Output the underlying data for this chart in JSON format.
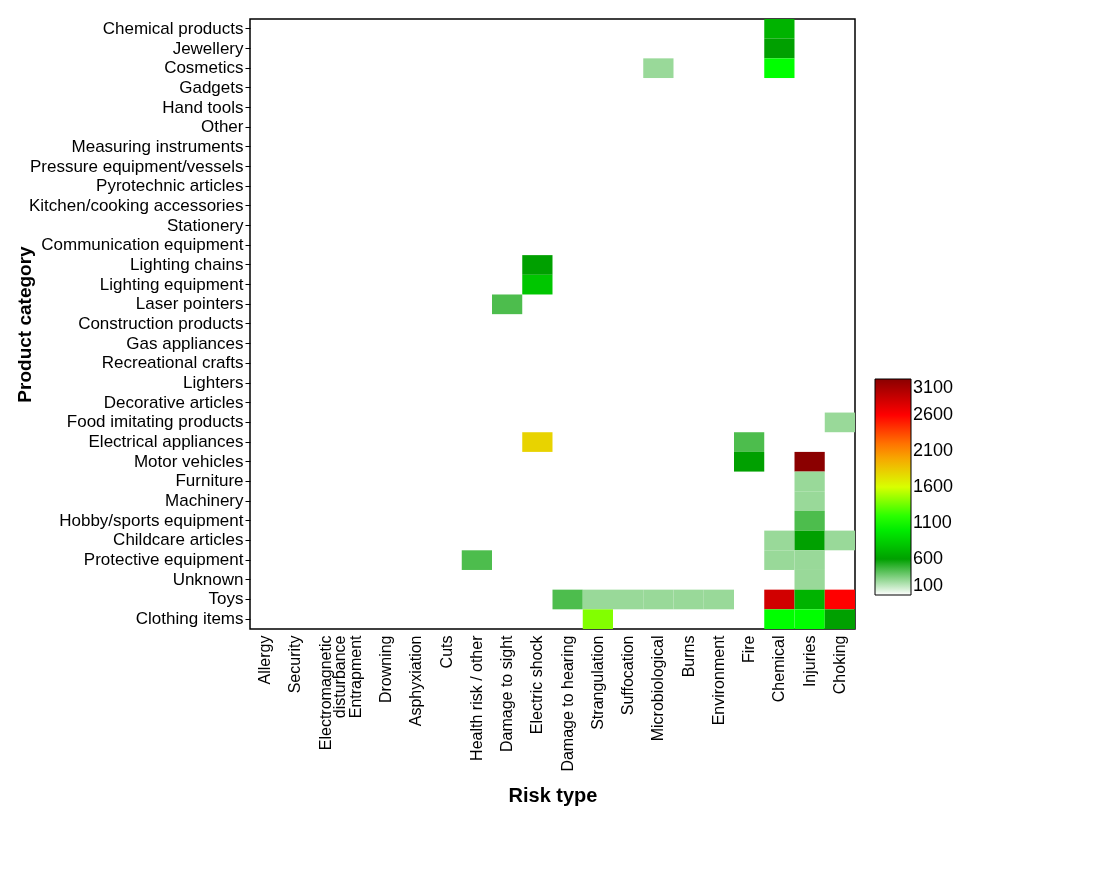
{
  "chart_data": {
    "type": "heatmap",
    "xlabel": "Risk type",
    "ylabel": "Product category",
    "categories": [
      "Allergy",
      "Security",
      "Electromagnetic disturbance",
      "Entrapment",
      "Drowning",
      "Asphyxiation",
      "Cuts",
      "Health risk / other",
      "Damage to sight",
      "Electric shock",
      "Damage to hearing",
      "Strangulation",
      "Suffocation",
      "Microbiological",
      "Burns",
      "Environment",
      "Fire",
      "Chemical",
      "Injuries",
      "Choking"
    ],
    "y_categories": [
      "Chemical products",
      "Jewellery",
      "Cosmetics",
      "Gadgets",
      "Hand tools",
      "Other",
      "Measuring instruments",
      "Pressure equipment/vessels",
      "Pyrotechnic articles",
      "Kitchen/cooking accessories",
      "Stationery",
      "Communication equipment",
      "Lighting chains",
      "Lighting equipment",
      "Laser pointers",
      "Construction products",
      "Gas appliances",
      "Recreational crafts",
      "Lighters",
      "Decorative articles",
      "Food imitating products",
      "Electrical appliances",
      "Motor vehicles",
      "Furniture",
      "Machinery",
      "Hobby/sports equipment",
      "Childcare articles",
      "Protective equipment",
      "Unknown",
      "Toys",
      "Clothing items"
    ],
    "cells": [
      [
        null,
        null,
        null,
        null,
        null,
        null,
        null,
        null,
        null,
        null,
        null,
        null,
        null,
        null,
        null,
        null,
        null,
        700,
        null,
        null
      ],
      [
        null,
        null,
        null,
        null,
        null,
        null,
        null,
        null,
        null,
        null,
        null,
        null,
        null,
        null,
        null,
        null,
        null,
        600,
        null,
        null
      ],
      [
        null,
        null,
        null,
        null,
        null,
        null,
        null,
        null,
        null,
        null,
        null,
        null,
        null,
        300,
        null,
        null,
        null,
        1100,
        null,
        null
      ],
      [
        null,
        null,
        null,
        null,
        null,
        null,
        null,
        null,
        null,
        null,
        null,
        null,
        null,
        null,
        null,
        null,
        null,
        null,
        null,
        null
      ],
      [
        null,
        null,
        null,
        null,
        null,
        null,
        null,
        null,
        null,
        null,
        null,
        null,
        null,
        null,
        null,
        null,
        null,
        null,
        null,
        null
      ],
      [
        null,
        null,
        null,
        null,
        null,
        null,
        null,
        null,
        null,
        null,
        null,
        null,
        null,
        null,
        null,
        null,
        null,
        null,
        null,
        null
      ],
      [
        null,
        null,
        null,
        null,
        null,
        null,
        null,
        null,
        null,
        null,
        null,
        null,
        null,
        null,
        null,
        null,
        null,
        null,
        null,
        null
      ],
      [
        null,
        null,
        null,
        null,
        null,
        null,
        null,
        null,
        null,
        null,
        null,
        null,
        null,
        null,
        null,
        null,
        null,
        null,
        null,
        null
      ],
      [
        null,
        null,
        null,
        null,
        null,
        null,
        null,
        null,
        null,
        null,
        null,
        null,
        null,
        null,
        null,
        null,
        null,
        null,
        null,
        null
      ],
      [
        null,
        null,
        null,
        null,
        null,
        null,
        null,
        null,
        null,
        null,
        null,
        null,
        null,
        null,
        null,
        null,
        null,
        null,
        null,
        null
      ],
      [
        null,
        null,
        null,
        null,
        null,
        null,
        null,
        null,
        null,
        null,
        null,
        null,
        null,
        null,
        null,
        null,
        null,
        null,
        null,
        null
      ],
      [
        null,
        null,
        null,
        null,
        null,
        null,
        null,
        null,
        null,
        null,
        null,
        null,
        null,
        null,
        null,
        null,
        null,
        null,
        null,
        null
      ],
      [
        null,
        null,
        null,
        null,
        null,
        null,
        null,
        null,
        null,
        600,
        null,
        null,
        null,
        null,
        null,
        null,
        null,
        null,
        null,
        null
      ],
      [
        null,
        null,
        null,
        null,
        null,
        null,
        null,
        null,
        null,
        800,
        null,
        null,
        null,
        null,
        null,
        null,
        null,
        null,
        null,
        null
      ],
      [
        null,
        null,
        null,
        null,
        null,
        null,
        null,
        null,
        450,
        null,
        null,
        null,
        null,
        null,
        null,
        null,
        null,
        null,
        null,
        null
      ],
      [
        null,
        null,
        null,
        null,
        null,
        null,
        null,
        null,
        null,
        null,
        null,
        null,
        null,
        null,
        null,
        null,
        null,
        null,
        null,
        null
      ],
      [
        null,
        null,
        null,
        null,
        null,
        null,
        null,
        null,
        null,
        null,
        null,
        null,
        null,
        null,
        null,
        null,
        null,
        null,
        null,
        null
      ],
      [
        null,
        null,
        null,
        null,
        null,
        null,
        null,
        null,
        null,
        null,
        null,
        null,
        null,
        null,
        null,
        null,
        null,
        null,
        null,
        null
      ],
      [
        null,
        null,
        null,
        null,
        null,
        null,
        null,
        null,
        null,
        null,
        null,
        null,
        null,
        null,
        null,
        null,
        null,
        null,
        null,
        null
      ],
      [
        null,
        null,
        null,
        null,
        null,
        null,
        null,
        null,
        null,
        null,
        null,
        null,
        null,
        null,
        null,
        null,
        null,
        null,
        null,
        null
      ],
      [
        null,
        null,
        null,
        null,
        null,
        null,
        null,
        null,
        null,
        null,
        null,
        null,
        null,
        null,
        null,
        null,
        null,
        null,
        null,
        300
      ],
      [
        null,
        null,
        null,
        null,
        null,
        null,
        null,
        null,
        null,
        1800,
        null,
        null,
        null,
        null,
        null,
        null,
        450,
        null,
        null,
        null
      ],
      [
        null,
        null,
        null,
        null,
        null,
        null,
        null,
        null,
        null,
        null,
        null,
        null,
        null,
        null,
        null,
        null,
        600,
        null,
        3100,
        null
      ],
      [
        null,
        null,
        null,
        null,
        null,
        null,
        null,
        null,
        null,
        null,
        null,
        null,
        null,
        null,
        null,
        null,
        null,
        null,
        300,
        null
      ],
      [
        null,
        null,
        null,
        null,
        null,
        null,
        null,
        null,
        null,
        null,
        null,
        null,
        null,
        null,
        null,
        null,
        null,
        null,
        300,
        null
      ],
      [
        null,
        null,
        null,
        null,
        null,
        null,
        null,
        null,
        null,
        null,
        null,
        null,
        null,
        null,
        null,
        null,
        null,
        null,
        450,
        null
      ],
      [
        null,
        null,
        null,
        null,
        null,
        null,
        null,
        null,
        null,
        null,
        null,
        null,
        null,
        null,
        null,
        null,
        null,
        300,
        600,
        300
      ],
      [
        null,
        null,
        null,
        null,
        null,
        null,
        null,
        450,
        null,
        null,
        null,
        null,
        null,
        null,
        null,
        null,
        null,
        300,
        300,
        null
      ],
      [
        null,
        null,
        null,
        null,
        null,
        null,
        null,
        null,
        null,
        null,
        null,
        null,
        null,
        null,
        null,
        null,
        null,
        null,
        300,
        null
      ],
      [
        null,
        null,
        null,
        null,
        null,
        null,
        null,
        null,
        null,
        null,
        450,
        300,
        300,
        300,
        300,
        300,
        null,
        2800,
        700,
        2600
      ],
      [
        null,
        null,
        null,
        null,
        null,
        null,
        null,
        null,
        null,
        null,
        null,
        1400,
        null,
        null,
        null,
        null,
        null,
        1100,
        1100,
        600
      ]
    ],
    "cticks": [
      100,
      600,
      1100,
      1600,
      2100,
      2600,
      3100
    ],
    "colors": [
      "#ffffff",
      "#00a000",
      "#00ff00",
      "#d8ff00",
      "#ff9000",
      "#ff0000",
      "#8b0000"
    ]
  }
}
